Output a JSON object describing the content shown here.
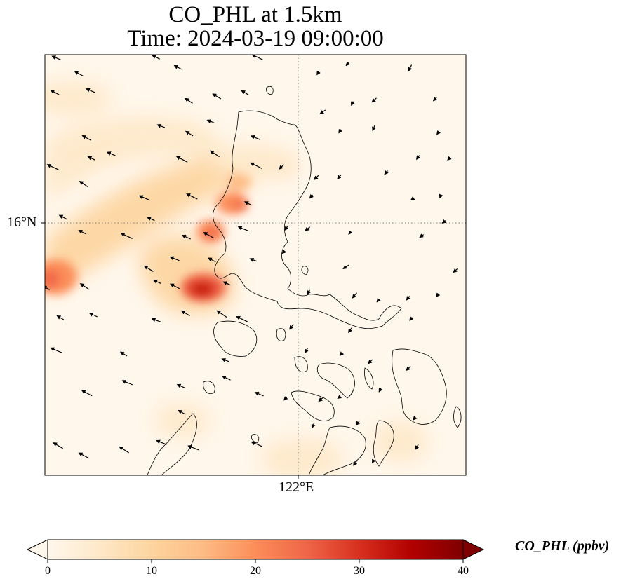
{
  "title": {
    "line1": "CO_PHL at 1.5km",
    "line2": "Time: 2024-03-19 09:00:00"
  },
  "map": {
    "type": "geographic-field-with-wind-vectors",
    "variable": "CO_PHL",
    "level": "1.5km",
    "gridlines": {
      "style": "dotted",
      "color": "#777777"
    },
    "lat_label": "16°N",
    "lon_label": "122°E",
    "coastline_color": "#000000",
    "colormap": [
      "#fff7ec",
      "#fee8c8",
      "#fdd49e",
      "#fdbb84",
      "#fc8d59",
      "#ef6548",
      "#d7301f",
      "#b30000",
      "#7f0000"
    ]
  },
  "colorbar": {
    "label": "CO_PHL (ppbv)",
    "min": 0,
    "max": 40,
    "extend": "both",
    "ticks": [
      "0",
      "10",
      "20",
      "30",
      "40"
    ]
  }
}
